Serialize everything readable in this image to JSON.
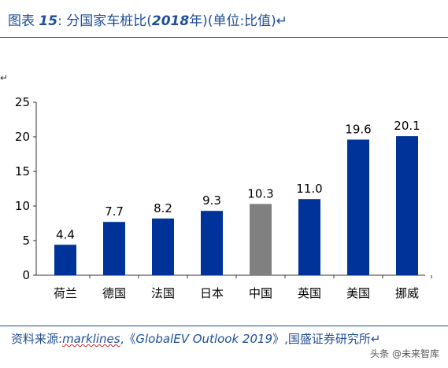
{
  "title": {
    "prefix": "图表 ",
    "number": "15",
    "colon": ":",
    "text_before_year": " 分国家车桩比(",
    "year": "2018",
    "text_after_year": "年)(单位:比值)↵"
  },
  "stray_mark": "↵",
  "source": {
    "label": "资料来源:",
    "s1": "marklines",
    "sep1": ",《",
    "s2": "GlobalEV Outlook 2019",
    "sep2": "》,国盛证券研究所↵"
  },
  "watermark": "头条 @未来智库",
  "colors": {
    "bar_default": "#003399",
    "bar_highlight": "#808080",
    "axis": "#333333",
    "text_blue": "#1f4e96"
  },
  "chart_data": {
    "type": "bar",
    "categories": [
      "荷兰",
      "德国",
      "法国",
      "日本",
      "中国",
      "英国",
      "美国",
      "挪威"
    ],
    "values": [
      4.4,
      7.7,
      8.2,
      9.3,
      10.3,
      11.0,
      19.6,
      20.1
    ],
    "value_labels": [
      "4.4",
      "7.7",
      "8.2",
      "9.3",
      "10.3",
      "11.0",
      "19.6",
      "20.1"
    ],
    "highlight_index": 4,
    "yticks": [
      "0",
      "5",
      "10",
      "15",
      "20",
      "25"
    ],
    "ylim": [
      0,
      25
    ],
    "grid": false,
    "legend": false
  }
}
